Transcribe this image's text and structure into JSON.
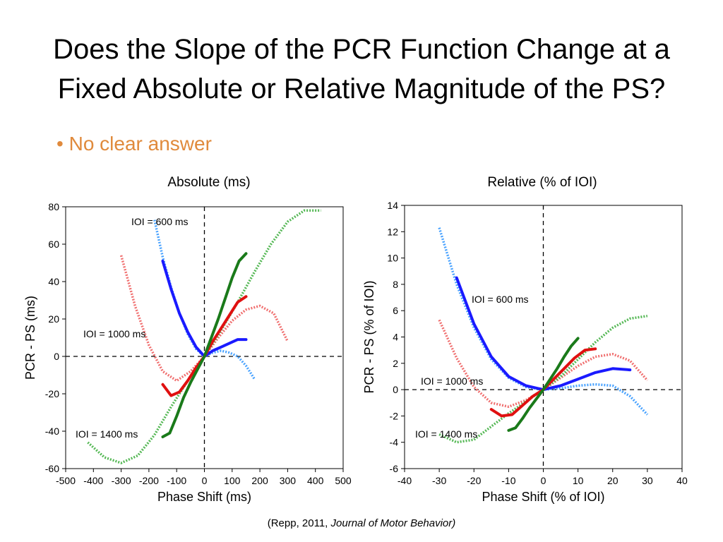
{
  "slide": {
    "title_line1": "Does the Slope of the PCR Function Change at a",
    "title_line2": "Fixed Absolute or Relative Magnitude of the PS?",
    "bullet": "No clear answer",
    "bullet_marker": "•",
    "caption_left": "Absolute (ms)",
    "caption_right": "Relative (% of IOI)",
    "citation_prefix": "(Repp, 2011, ",
    "citation_journal": "Journal of Motor Behavior)",
    "colors": {
      "bullet": "#e08a3c",
      "ioi_600": "#1a1aff",
      "ioi_1000": "#e01010",
      "ioi_1400": "#1a7a1a",
      "ioi_600_fit": "#4aa3ff",
      "ioi_1000_fit": "#f07070",
      "ioi_1400_fit": "#55b855"
    }
  },
  "chart_data": [
    {
      "type": "line",
      "title": "Absolute (ms)",
      "xlabel": "Phase Shift (ms)",
      "ylabel": "PCR - PS (ms)",
      "xlim": [
        -500,
        500
      ],
      "ylim": [
        -60,
        80
      ],
      "xticks": [
        -500,
        -400,
        -300,
        -200,
        -100,
        0,
        100,
        200,
        300,
        400,
        500
      ],
      "yticks": [
        -60,
        -40,
        -20,
        0,
        20,
        40,
        60,
        80
      ],
      "grid": false,
      "annotations": [
        "IOI = 600 ms",
        "IOI = 1000 ms",
        "IOI = 1400 ms"
      ],
      "series": [
        {
          "name": "IOI = 600 ms",
          "style": "solid",
          "color_key": "ioi_600",
          "x": [
            -150,
            -120,
            -90,
            -60,
            -30,
            0,
            30,
            60,
            90,
            120,
            150
          ],
          "y": [
            51,
            36,
            23,
            13,
            5,
            0,
            3,
            5,
            7,
            9,
            9
          ]
        },
        {
          "name": "IOI = 600 ms",
          "style": "dotted",
          "color_key": "ioi_600_fit",
          "x": [
            -180,
            -150,
            -120,
            -90,
            -60,
            -30,
            0,
            30,
            60,
            90,
            120,
            150,
            180
          ],
          "y": [
            73,
            53,
            37,
            23,
            12,
            4,
            0,
            2,
            3,
            2,
            0,
            -5,
            -12
          ]
        },
        {
          "name": "IOI = 1000 ms",
          "style": "solid",
          "color_key": "ioi_1000",
          "x": [
            -150,
            -120,
            -90,
            -60,
            -30,
            0,
            30,
            60,
            90,
            120,
            150
          ],
          "y": [
            -15,
            -21,
            -19,
            -13,
            -6,
            0,
            8,
            15,
            22,
            29,
            32
          ]
        },
        {
          "name": "IOI = 1000 ms",
          "style": "dotted",
          "color_key": "ioi_1000_fit",
          "x": [
            -300,
            -250,
            -200,
            -150,
            -100,
            -50,
            0,
            50,
            100,
            150,
            200,
            250,
            300
          ],
          "y": [
            54,
            27,
            6,
            -8,
            -13,
            -8,
            0,
            10,
            19,
            25,
            27,
            23,
            8
          ]
        },
        {
          "name": "IOI = 1400 ms",
          "style": "solid",
          "color_key": "ioi_1400",
          "x": [
            -150,
            -125,
            -100,
            -75,
            -50,
            -25,
            0,
            25,
            50,
            75,
            100,
            125,
            150
          ],
          "y": [
            -43,
            -41,
            -32,
            -22,
            -14,
            -7,
            0,
            10,
            20,
            31,
            42,
            51,
            55
          ]
        },
        {
          "name": "IOI = 1400 ms",
          "style": "dotted",
          "color_key": "ioi_1400_fit",
          "x": [
            -420,
            -360,
            -300,
            -240,
            -180,
            -120,
            -60,
            0,
            60,
            120,
            180,
            240,
            300,
            360,
            420
          ],
          "y": [
            -46,
            -54,
            -57,
            -53,
            -42,
            -27,
            -13,
            0,
            14,
            29,
            45,
            60,
            72,
            78,
            78
          ]
        }
      ]
    },
    {
      "type": "line",
      "title": "Relative (% of IOI)",
      "xlabel": "Phase Shift (% of IOI)",
      "ylabel": "PCR - PS (% of IOI)",
      "xlim": [
        -40,
        40
      ],
      "ylim": [
        -6,
        14
      ],
      "xticks": [
        -40,
        -30,
        -20,
        -10,
        0,
        10,
        20,
        30,
        40
      ],
      "yticks": [
        -6,
        -4,
        -2,
        0,
        2,
        4,
        6,
        8,
        10,
        12,
        14
      ],
      "grid": false,
      "annotations": [
        "IOI = 600 ms",
        "IOI = 1000 ms",
        "IOI = 1400 ms"
      ],
      "series": [
        {
          "name": "IOI = 600 ms",
          "style": "solid",
          "color_key": "ioi_600",
          "x": [
            -25,
            -20,
            -15,
            -10,
            -5,
            0,
            5,
            10,
            15,
            20,
            25
          ],
          "y": [
            8.5,
            5.0,
            2.5,
            1.0,
            0.3,
            0,
            0.3,
            0.8,
            1.3,
            1.6,
            1.5
          ]
        },
        {
          "name": "IOI = 600 ms",
          "style": "dotted",
          "color_key": "ioi_600_fit",
          "x": [
            -30,
            -25,
            -20,
            -15,
            -10,
            -5,
            0,
            5,
            10,
            15,
            20,
            25,
            30
          ],
          "y": [
            12.3,
            8.0,
            4.7,
            2.3,
            0.9,
            0.2,
            0,
            0.1,
            0.3,
            0.4,
            0.3,
            -0.5,
            -1.9
          ]
        },
        {
          "name": "IOI = 1000 ms",
          "style": "solid",
          "color_key": "ioi_1000",
          "x": [
            -15,
            -12,
            -9,
            -6,
            -3,
            0,
            3,
            6,
            9,
            12,
            15
          ],
          "y": [
            -1.5,
            -2.0,
            -1.9,
            -1.2,
            -0.5,
            0,
            0.8,
            1.6,
            2.4,
            3.0,
            3.1
          ]
        },
        {
          "name": "IOI = 1000 ms",
          "style": "dotted",
          "color_key": "ioi_1000_fit",
          "x": [
            -30,
            -25,
            -20,
            -15,
            -10,
            -5,
            0,
            5,
            10,
            15,
            20,
            25,
            30
          ],
          "y": [
            5.3,
            2.4,
            0.2,
            -1.0,
            -1.3,
            -0.8,
            0,
            0.9,
            1.8,
            2.5,
            2.7,
            2.2,
            0.7
          ]
        },
        {
          "name": "IOI = 1400 ms",
          "style": "solid",
          "color_key": "ioi_1400",
          "x": [
            -10,
            -8,
            -6,
            -4,
            -2,
            0,
            2,
            4,
            6,
            8,
            10
          ],
          "y": [
            -3.1,
            -2.9,
            -2.2,
            -1.4,
            -0.7,
            0,
            0.8,
            1.6,
            2.5,
            3.3,
            3.9
          ]
        },
        {
          "name": "IOI = 1400 ms",
          "style": "dotted",
          "color_key": "ioi_1400_fit",
          "x": [
            -30,
            -25,
            -20,
            -15,
            -10,
            -5,
            0,
            5,
            10,
            15,
            20,
            25,
            30
          ],
          "y": [
            -3.4,
            -4.0,
            -3.8,
            -2.8,
            -1.8,
            -0.9,
            0,
            1.0,
            2.3,
            3.6,
            4.7,
            5.4,
            5.6
          ]
        }
      ]
    }
  ]
}
